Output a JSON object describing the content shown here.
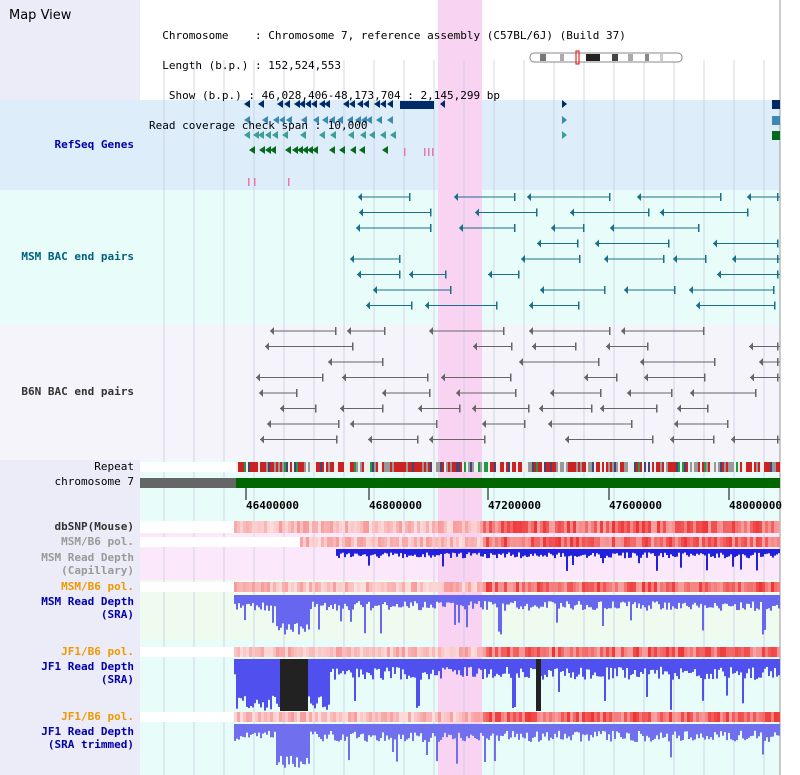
{
  "title": "Map View",
  "info": {
    "line1": "  Chromosome    : Chromosome 7, reference assembly (C57BL/6J) (Build 37)",
    "line2": "  Length (b.p.) : 152,524,553",
    "line3": "   Show (b.p.) : 46,028,406-48,173,704 : 2,145,299 bp",
    "line4": "Read coverage check span : 10,000"
  },
  "tracks": {
    "refseq": "RefSeq Genes",
    "msm_bac": "MSM BAC end pairs",
    "b6n_bac": "B6N BAC end pairs",
    "repeat": "Repeat",
    "chromosome": "chromosome 7",
    "dbsnp": "dbSNP(Mouse)",
    "msm_b6_pol_1": "MSM/B6 pol.",
    "msm_depth_cap_1": "MSM Read Depth",
    "msm_depth_cap_2": "(Capillary)",
    "msm_b6_pol_2": "MSM/B6 pol.",
    "msm_depth_sra_1": "MSM Read Depth",
    "msm_depth_sra_2": "(SRA)",
    "jf1_b6_pol_1": "JF1/B6 pol.",
    "jf1_depth_sra_1": "JF1 Read Depth",
    "jf1_depth_sra_2": "(SRA)",
    "jf1_b6_pol_2": "JF1/B6 pol.",
    "jf1_depth_trim_1": "JF1 Read Depth",
    "jf1_depth_trim_2": "(SRA trimmed)"
  },
  "axis": {
    "ticks": [
      "46400000",
      "46800000",
      "47200000",
      "47600000",
      "48000000"
    ]
  },
  "colors": {
    "refseq_bg": "#ddeefa",
    "msm_bg": "#e8fdfa",
    "b6n_bg": "#f4f4fa",
    "highlight": "#f9d3f2",
    "chromosome": "#006600",
    "label_blue": "#0000aa",
    "label_teal": "#006080",
    "label_orange": "#ee9900"
  }
}
